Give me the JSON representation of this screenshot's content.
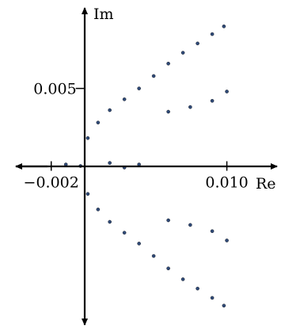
{
  "chart_data": {
    "type": "scatter",
    "xlabel": "Re",
    "ylabel": "Im",
    "x_ticks": [
      {
        "value": -0.002,
        "label": "−0.002"
      },
      {
        "value": 0.01,
        "label": "0.010"
      }
    ],
    "y_ticks": [
      {
        "value": 0.005,
        "label": "0.005"
      }
    ],
    "xlim": [
      -0.0055,
      0.0137
    ],
    "ylim": [
      -0.0107,
      0.0107
    ],
    "grid": false,
    "legend": "none",
    "point_color": "#2f4a78",
    "point_edge_color": "#000000",
    "series": [
      {
        "values": [
          {
            "x": 0.0,
            "y": 0.0
          },
          {
            "x": 0.0005,
            "y": 0.0018
          },
          {
            "x": 0.0012,
            "y": 0.0028
          },
          {
            "x": 0.002,
            "y": 0.0036
          },
          {
            "x": 0.003,
            "y": 0.0043
          },
          {
            "x": 0.004,
            "y": 0.005
          },
          {
            "x": 0.005,
            "y": 0.0058
          },
          {
            "x": 0.006,
            "y": 0.0066
          },
          {
            "x": 0.007,
            "y": 0.0073
          },
          {
            "x": 0.008,
            "y": 0.0079
          },
          {
            "x": 0.009,
            "y": 0.0085
          },
          {
            "x": 0.0098,
            "y": 0.009
          },
          {
            "x": 0.006,
            "y": 0.0035
          },
          {
            "x": 0.0075,
            "y": 0.0038
          },
          {
            "x": 0.009,
            "y": 0.0042
          },
          {
            "x": 0.01,
            "y": 0.0048
          },
          {
            "x": 0.0005,
            "y": -0.0018
          },
          {
            "x": 0.0012,
            "y": -0.0028
          },
          {
            "x": 0.002,
            "y": -0.0036
          },
          {
            "x": 0.003,
            "y": -0.0043
          },
          {
            "x": 0.004,
            "y": -0.005
          },
          {
            "x": 0.005,
            "y": -0.0058
          },
          {
            "x": 0.006,
            "y": -0.0066
          },
          {
            "x": 0.007,
            "y": -0.0073
          },
          {
            "x": 0.008,
            "y": -0.0079
          },
          {
            "x": 0.009,
            "y": -0.0085
          },
          {
            "x": 0.0098,
            "y": -0.009
          },
          {
            "x": 0.006,
            "y": -0.0035
          },
          {
            "x": 0.0075,
            "y": -0.0038
          },
          {
            "x": 0.009,
            "y": -0.0042
          },
          {
            "x": 0.01,
            "y": -0.0048
          },
          {
            "x": 0.002,
            "y": 0.0002
          },
          {
            "x": 0.003,
            "y": -0.0001
          },
          {
            "x": 0.004,
            "y": 0.0001
          },
          {
            "x": -0.001,
            "y": 0.0001
          }
        ]
      }
    ]
  }
}
